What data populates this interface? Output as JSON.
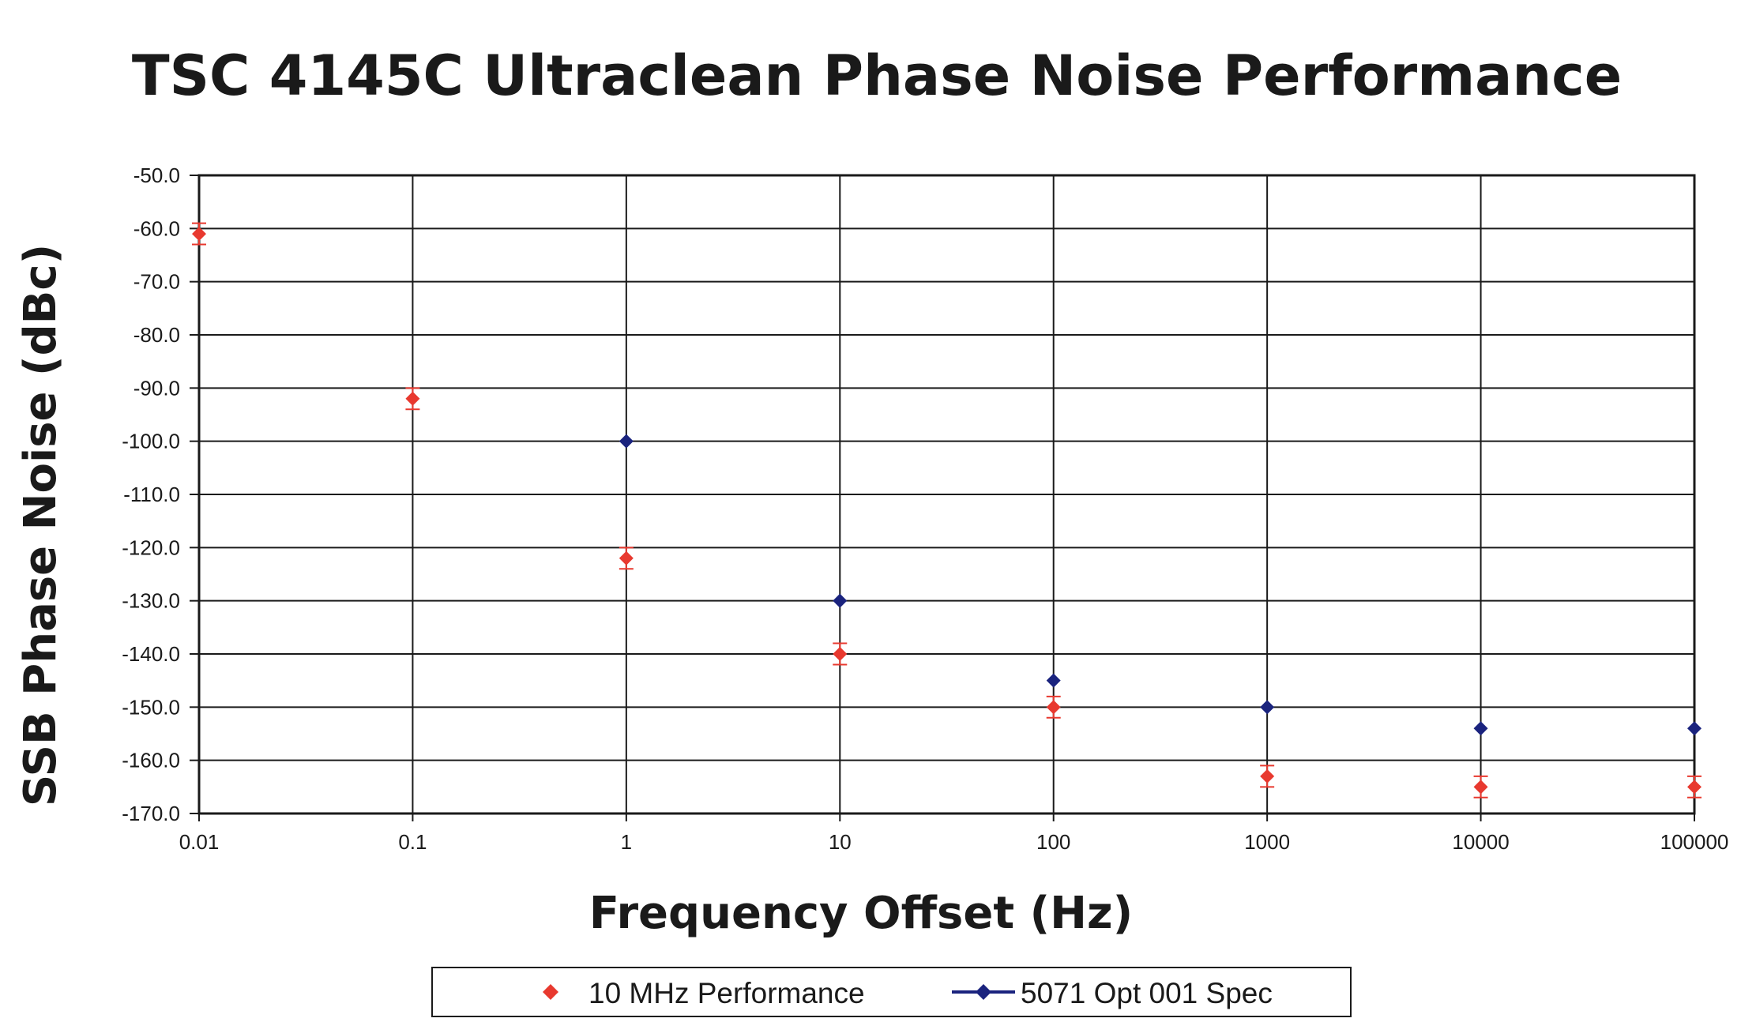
{
  "chart_data": {
    "type": "scatter",
    "title": "TSC 4145C Ultraclean Phase Noise Performance",
    "xlabel": "Frequency Offset (Hz)",
    "ylabel": "SSB Phase Noise (dBc)",
    "x_scale": "log",
    "x_ticks": [
      "0.01",
      "0.1",
      "1",
      "10",
      "100",
      "1000",
      "10000",
      "100000"
    ],
    "y_ticks": [
      "-50.0",
      "-60.0",
      "-70.0",
      "-80.0",
      "-90.0",
      "-100.0",
      "-110.0",
      "-120.0",
      "-130.0",
      "-140.0",
      "-150.0",
      "-160.0",
      "-170.0"
    ],
    "xlim": [
      0.01,
      100000
    ],
    "ylim": [
      -170,
      -50
    ],
    "grid": true,
    "legend_position": "bottom",
    "series": [
      {
        "name": "10 MHz Performance",
        "color": "#e8392f",
        "marker": "diamond",
        "line": false,
        "error_bars": true,
        "x": [
          0.01,
          0.1,
          1,
          10,
          100,
          1000,
          10000,
          100000
        ],
        "y": [
          -61,
          -92,
          -122,
          -140,
          -150,
          -163,
          -165,
          -165
        ],
        "err": [
          2,
          2,
          2,
          2,
          2,
          2,
          2,
          2
        ]
      },
      {
        "name": "5071 Opt 001 Spec",
        "color": "#1a237e",
        "marker": "diamond",
        "line": true,
        "error_bars": false,
        "x": [
          1,
          10,
          100,
          1000,
          10000,
          100000
        ],
        "y": [
          -100,
          -130,
          -145,
          -150,
          -154,
          -154
        ]
      }
    ]
  }
}
